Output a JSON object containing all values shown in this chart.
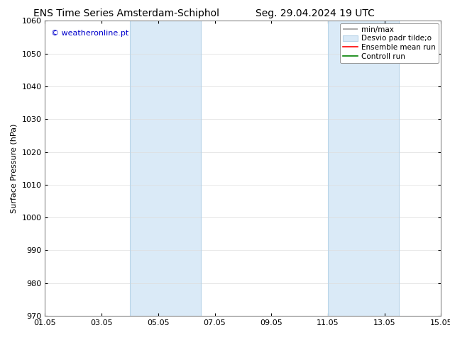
{
  "title_left": "ENS Time Series Amsterdam-Schiphol",
  "title_right": "Seg. 29.04.2024 19 UTC",
  "ylabel": "Surface Pressure (hPa)",
  "ylim": [
    970,
    1060
  ],
  "yticks": [
    970,
    980,
    990,
    1000,
    1010,
    1020,
    1030,
    1040,
    1050,
    1060
  ],
  "xlim": [
    0,
    14
  ],
  "xtick_labels": [
    "01.05",
    "03.05",
    "05.05",
    "07.05",
    "09.05",
    "11.05",
    "13.05",
    "15.05"
  ],
  "xtick_positions": [
    0,
    2,
    4,
    6,
    8,
    10,
    12,
    14
  ],
  "shaded_bands": [
    {
      "x_start": 3.0,
      "x_end": 5.5,
      "color": "#daeaf7"
    },
    {
      "x_start": 10.0,
      "x_end": 12.5,
      "color": "#daeaf7"
    }
  ],
  "band_edge_color": "#b8d4e8",
  "legend_labels": [
    "min/max",
    "Desvio padr tilde;o",
    "Ensemble mean run",
    "Controll run"
  ],
  "legend_colors": [
    "#999999",
    "#daeaf7",
    "#ff0000",
    "#008000"
  ],
  "watermark": "© weatheronline.pt",
  "watermark_color": "#0000cc",
  "background_color": "#ffffff",
  "plot_bg_color": "#ffffff",
  "grid_color": "#dddddd",
  "spine_color": "#888888",
  "title_fontsize": 10,
  "ylabel_fontsize": 8,
  "tick_fontsize": 8,
  "legend_fontsize": 7.5,
  "watermark_fontsize": 8
}
